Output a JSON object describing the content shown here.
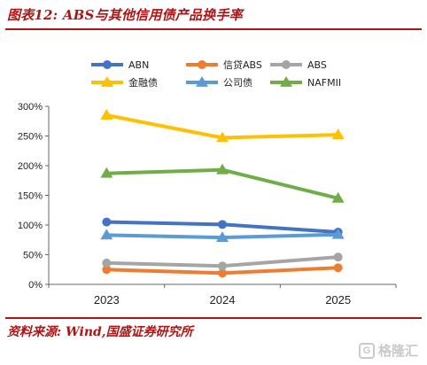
{
  "header": {
    "title": "图表12: ABS与其他信用债产品换手率"
  },
  "footer": {
    "source": "资料来源: Wind,国盛证券研究所",
    "watermark": "格隆汇"
  },
  "chart_data": {
    "type": "line",
    "title": "",
    "xlabel": "",
    "ylabel": "",
    "x": [
      "2023",
      "2024",
      "2025"
    ],
    "ylim": [
      0,
      300
    ],
    "yticks": [
      "0%",
      "50%",
      "100%",
      "150%",
      "200%",
      "250%",
      "300%"
    ],
    "grid": false,
    "legend": "top",
    "series": [
      {
        "name": "ABN",
        "values": [
          105,
          101,
          88
        ],
        "color": "#4472c4",
        "marker": "circle"
      },
      {
        "name": "信贷ABS",
        "values": [
          25,
          19,
          28
        ],
        "color": "#ed7d31",
        "marker": "circle"
      },
      {
        "name": "ABS",
        "values": [
          36,
          31,
          46
        ],
        "color": "#a5a5a5",
        "marker": "circle"
      },
      {
        "name": "金融债",
        "values": [
          285,
          247,
          252
        ],
        "color": "#ffc000",
        "marker": "triangle"
      },
      {
        "name": "公司债",
        "values": [
          83,
          79,
          84
        ],
        "color": "#5b9bd5",
        "marker": "triangle"
      },
      {
        "name": "NAFMII",
        "values": [
          187,
          193,
          145
        ],
        "color": "#70ad47",
        "marker": "triangle"
      }
    ]
  }
}
